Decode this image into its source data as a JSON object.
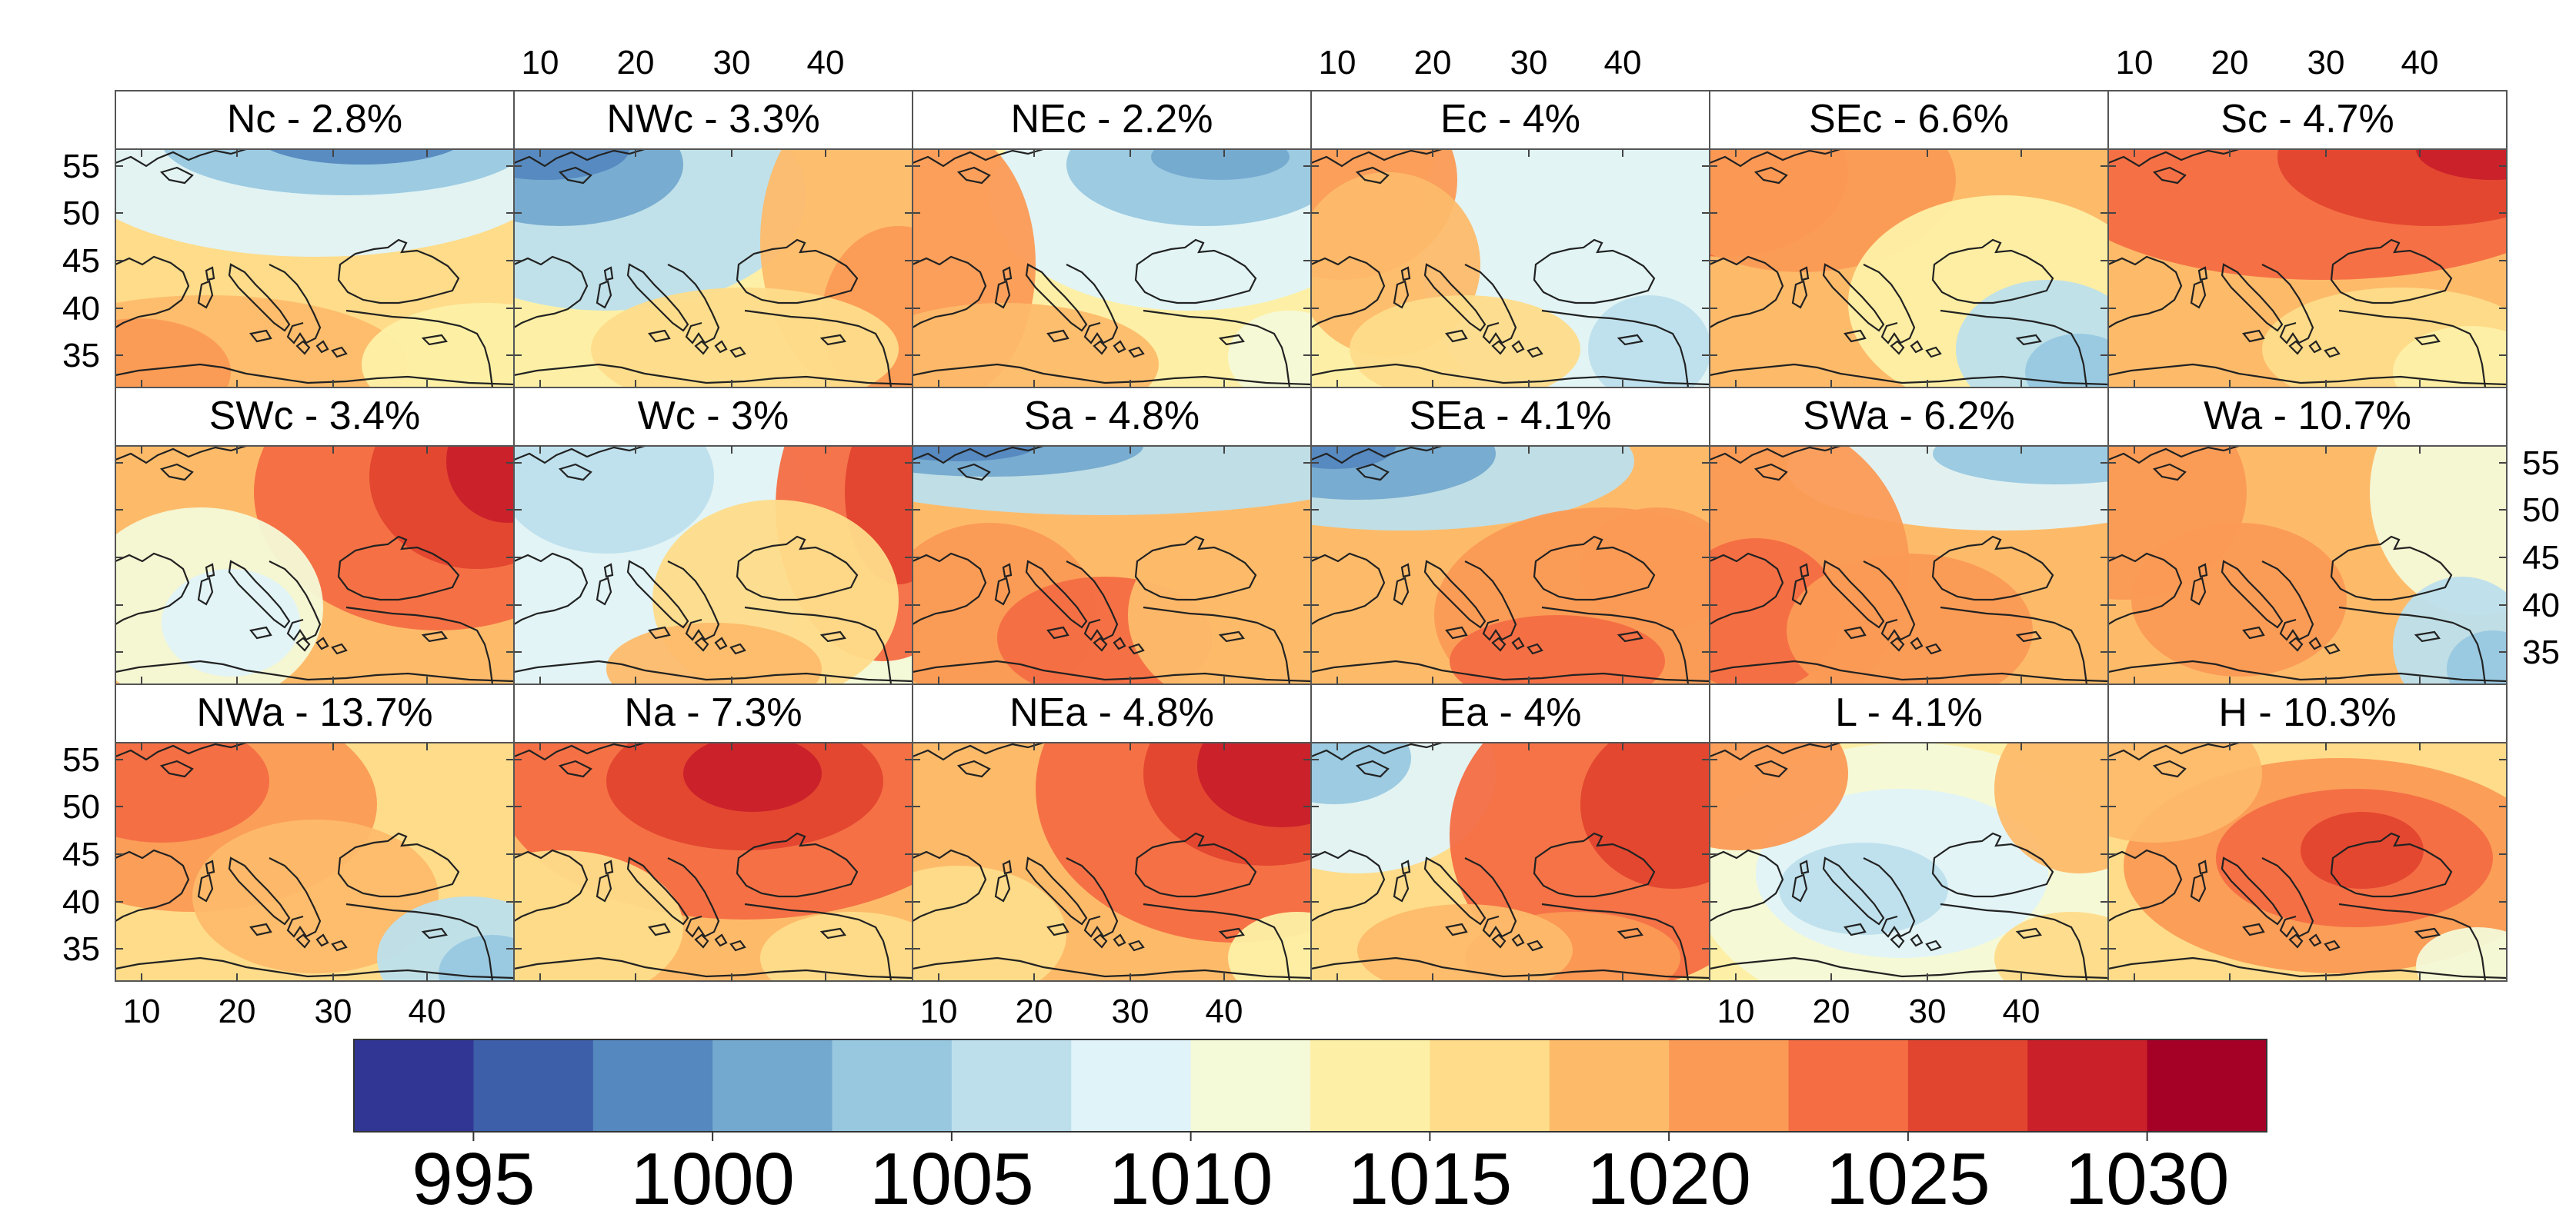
{
  "panels": [
    {
      "title": "Nc - 2.8%"
    },
    {
      "title": "NWc - 3.3%"
    },
    {
      "title": "NEc - 2.2%"
    },
    {
      "title": "Ec - 4%"
    },
    {
      "title": "SEc - 6.6%"
    },
    {
      "title": "Sc - 4.7%"
    },
    {
      "title": "SWc - 3.4%"
    },
    {
      "title": "Wc - 3%"
    },
    {
      "title": "Sa - 4.8%"
    },
    {
      "title": "SEa - 4.1%"
    },
    {
      "title": "SWa - 6.2%"
    },
    {
      "title": "Wa - 10.7%"
    },
    {
      "title": "NWa - 13.7%"
    },
    {
      "title": "Na - 7.3%"
    },
    {
      "title": "NEa - 4.8%"
    },
    {
      "title": "Ea - 4%"
    },
    {
      "title": "L - 4.1%"
    },
    {
      "title": "H - 10.3%"
    }
  ],
  "axes": {
    "lon_ticks": [
      "10",
      "20",
      "30",
      "40"
    ],
    "lat_ticks": [
      "55",
      "50",
      "45",
      "40",
      "35"
    ]
  },
  "colorbar": {
    "colors": [
      "#313695",
      "#3d5ea8",
      "#5588bf",
      "#74a9cf",
      "#98c8e0",
      "#bddfec",
      "#e0f3f8",
      "#f4f9d8",
      "#fdf0a6",
      "#fedc8a",
      "#fdbb6a",
      "#fb9a55",
      "#f46d43",
      "#e1452f",
      "#c9202a",
      "#a50026"
    ],
    "tick_labels": [
      "995",
      "1000",
      "1005",
      "1010",
      "1015",
      "1020",
      "1025",
      "1030"
    ]
  }
}
